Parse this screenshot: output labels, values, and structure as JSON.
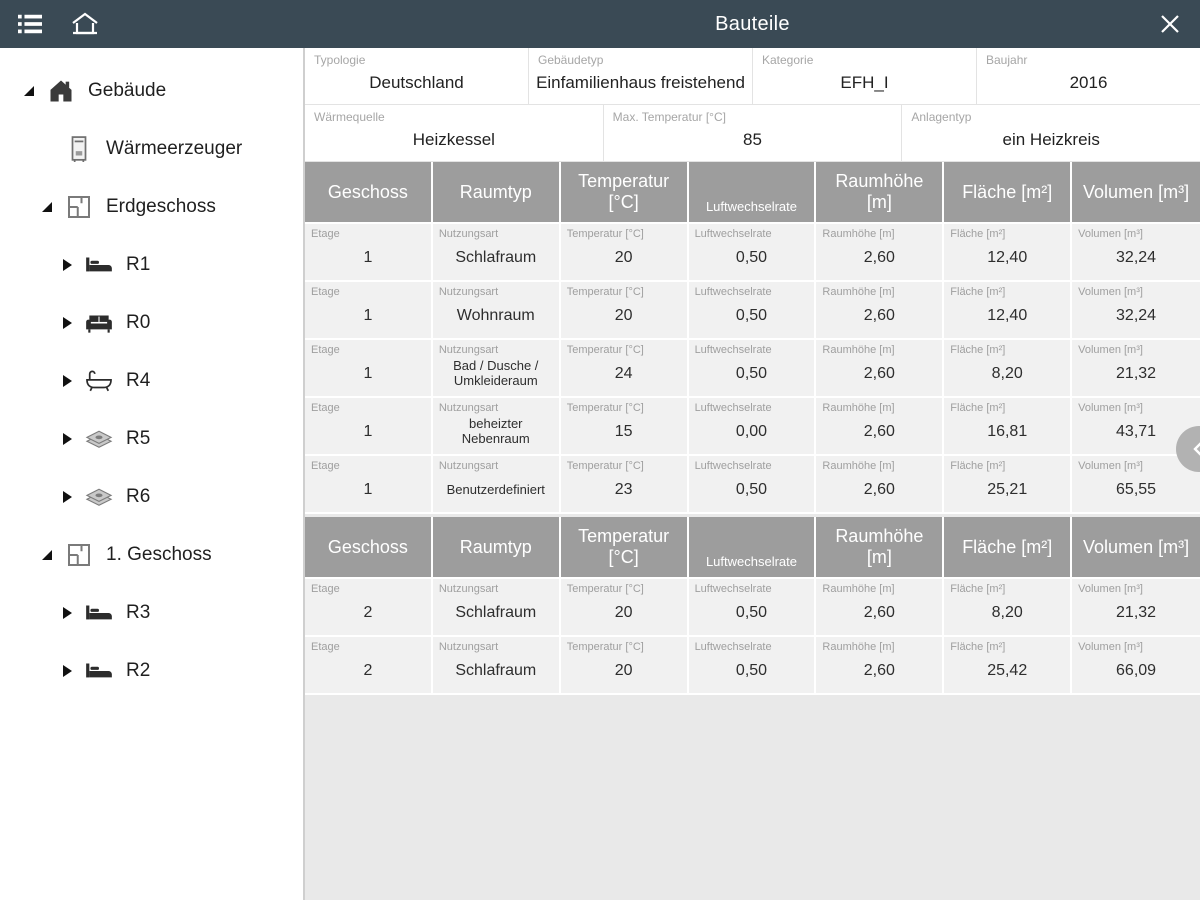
{
  "topbar": {
    "title": "Bauteile"
  },
  "sidebar": {
    "items": [
      {
        "label": "Gebäude",
        "icon": "house",
        "level": 0,
        "state": "expanded"
      },
      {
        "label": "Wärmeerzeuger",
        "icon": "heat-generator",
        "level": 1,
        "state": "leaf"
      },
      {
        "label": "Erdgeschoss",
        "icon": "floorplan",
        "level": 1,
        "state": "expanded"
      },
      {
        "label": "R1",
        "icon": "bed",
        "level": 2,
        "state": "collapsed"
      },
      {
        "label": "R0",
        "icon": "sofa",
        "level": 2,
        "state": "collapsed"
      },
      {
        "label": "R4",
        "icon": "bathtub",
        "level": 2,
        "state": "collapsed"
      },
      {
        "label": "R5",
        "icon": "money",
        "level": 2,
        "state": "collapsed"
      },
      {
        "label": "R6",
        "icon": "money",
        "level": 2,
        "state": "collapsed"
      },
      {
        "label": "1. Geschoss",
        "icon": "floorplan",
        "level": 1,
        "state": "expanded"
      },
      {
        "label": "R3",
        "icon": "bed",
        "level": 2,
        "state": "collapsed"
      },
      {
        "label": "R2",
        "icon": "bed",
        "level": 2,
        "state": "collapsed"
      }
    ]
  },
  "form": {
    "row1": [
      {
        "label": "Typologie",
        "value": "Deutschland"
      },
      {
        "label": "Gebäudetyp",
        "value": "Einfamilienhaus freistehend"
      },
      {
        "label": "Kategorie",
        "value": "EFH_I"
      },
      {
        "label": "Baujahr",
        "value": "2016"
      }
    ],
    "row2": [
      {
        "label": "Wärmequelle",
        "value": "Heizkessel"
      },
      {
        "label": "Max. Temperatur [°C]",
        "value": "85"
      },
      {
        "label": "Anlagentyp",
        "value": "ein Heizkreis"
      }
    ]
  },
  "tables": [
    {
      "headers": [
        "Geschoss",
        "Raumtyp",
        "Temperatur [°C]",
        "Luftwechselrate",
        "Raumhöhe [m]",
        "Fläche [m²]",
        "Volumen [m³]"
      ],
      "cell_labels": [
        "Etage",
        "Nutzungsart",
        "Temperatur [°C]",
        "Luftwechselrate",
        "Raumhöhe [m]",
        "Fläche [m²]",
        "Volumen [m³]"
      ],
      "rows": [
        [
          "1",
          "Schlafraum",
          "20",
          "0,50",
          "2,60",
          "12,40",
          "32,24"
        ],
        [
          "1",
          "Wohnraum",
          "20",
          "0,50",
          "2,60",
          "12,40",
          "32,24"
        ],
        [
          "1",
          "Bad / Dusche / Umkleideraum",
          "24",
          "0,50",
          "2,60",
          "8,20",
          "21,32"
        ],
        [
          "1",
          "beheizter Nebenraum",
          "15",
          "0,00",
          "2,60",
          "16,81",
          "43,71"
        ],
        [
          "1",
          "Benutzerdefiniert",
          "23",
          "0,50",
          "2,60",
          "25,21",
          "65,55"
        ]
      ]
    },
    {
      "headers": [
        "Geschoss",
        "Raumtyp",
        "Temperatur [°C]",
        "Luftwechselrate",
        "Raumhöhe [m]",
        "Fläche [m²]",
        "Volumen [m³]"
      ],
      "cell_labels": [
        "Etage",
        "Nutzungsart",
        "Temperatur [°C]",
        "Luftwechselrate",
        "Raumhöhe [m]",
        "Fläche [m²]",
        "Volumen [m³]"
      ],
      "rows": [
        [
          "2",
          "Schlafraum",
          "20",
          "0,50",
          "2,60",
          "8,20",
          "21,32"
        ],
        [
          "2",
          "Schlafraum",
          "20",
          "0,50",
          "2,60",
          "25,42",
          "66,09"
        ]
      ]
    }
  ],
  "colors": {
    "topbar_bg": "#3a4a55",
    "table_header_bg": "#9d9d9d",
    "cell_bg": "#f1f1f1"
  }
}
